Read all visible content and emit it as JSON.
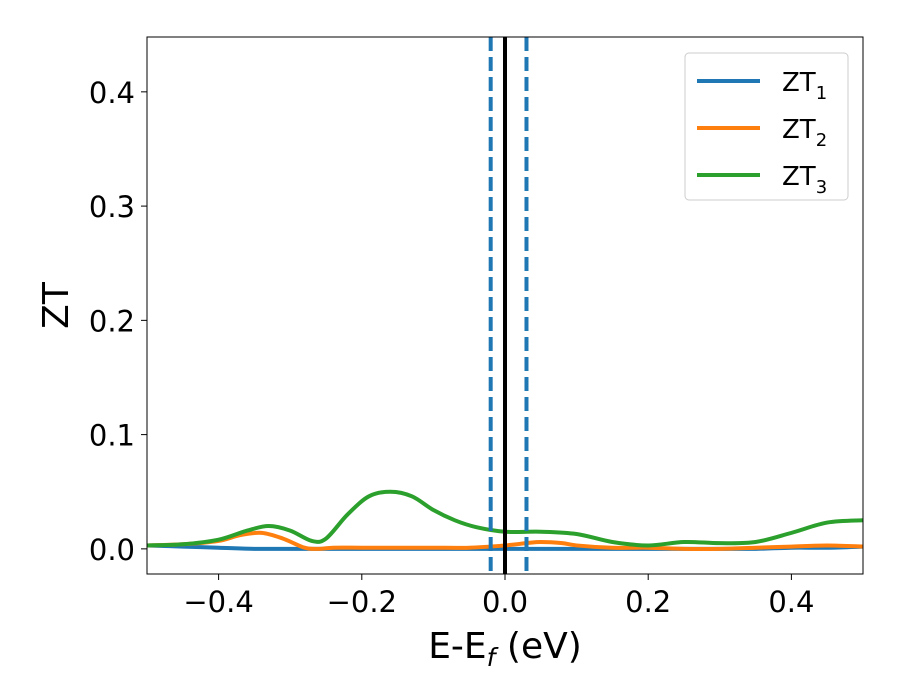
{
  "chart_data": {
    "type": "line",
    "title": "",
    "xlabel_main": "E-E",
    "xlabel_sub": "f",
    "xlabel_unit": " (eV)",
    "ylabel": "ZT",
    "xlim": [
      -0.5,
      0.5
    ],
    "ylim": [
      -0.022,
      0.448
    ],
    "xticks": [
      -0.4,
      -0.2,
      0.0,
      0.2,
      0.4
    ],
    "xtick_labels": [
      "−0.4",
      "−0.2",
      "0.0",
      "0.2",
      "0.4"
    ],
    "yticks": [
      0.0,
      0.1,
      0.2,
      0.3,
      0.4
    ],
    "ytick_labels": [
      "0.0",
      "0.1",
      "0.2",
      "0.3",
      "0.4"
    ],
    "grid": false,
    "legend_position": "top-right",
    "vertical_lines": [
      {
        "x": -0.02,
        "style": "dashed",
        "color": "#1f77b4"
      },
      {
        "x": 0.0,
        "style": "solid",
        "color": "#000000"
      },
      {
        "x": 0.03,
        "style": "dashed",
        "color": "#1f77b4"
      }
    ],
    "series": [
      {
        "name_main": "ZT",
        "name_sub": "1",
        "color": "#1f77b4",
        "x": [
          -0.5,
          -0.45,
          -0.4,
          -0.35,
          -0.3,
          -0.25,
          -0.2,
          -0.15,
          -0.1,
          -0.05,
          0.0,
          0.05,
          0.1,
          0.15,
          0.2,
          0.25,
          0.3,
          0.35,
          0.4,
          0.45,
          0.5
        ],
        "y": [
          0.003,
          0.002,
          0.001,
          0.0,
          0.0,
          0.0,
          0.0,
          0.0,
          0.0,
          0.0,
          0.0,
          0.0,
          0.0,
          0.0,
          0.0,
          0.0,
          0.0,
          0.0,
          0.001,
          0.001,
          0.002
        ]
      },
      {
        "name_main": "ZT",
        "name_sub": "2",
        "color": "#ff7f0e",
        "x": [
          -0.5,
          -0.45,
          -0.4,
          -0.37,
          -0.34,
          -0.31,
          -0.28,
          -0.26,
          -0.24,
          -0.2,
          -0.15,
          -0.1,
          -0.05,
          0.0,
          0.03,
          0.05,
          0.08,
          0.1,
          0.15,
          0.2,
          0.25,
          0.3,
          0.35,
          0.4,
          0.45,
          0.5
        ],
        "y": [
          0.003,
          0.004,
          0.007,
          0.012,
          0.014,
          0.009,
          0.001,
          0.0,
          0.001,
          0.001,
          0.001,
          0.001,
          0.001,
          0.003,
          0.005,
          0.006,
          0.005,
          0.003,
          0.001,
          0.001,
          0.0,
          0.0,
          0.001,
          0.002,
          0.003,
          0.002
        ]
      },
      {
        "name_main": "ZT",
        "name_sub": "3",
        "color": "#2ca02c",
        "x": [
          -0.5,
          -0.45,
          -0.4,
          -0.36,
          -0.33,
          -0.3,
          -0.27,
          -0.25,
          -0.22,
          -0.19,
          -0.16,
          -0.13,
          -0.1,
          -0.07,
          -0.04,
          0.0,
          0.05,
          0.1,
          0.15,
          0.2,
          0.25,
          0.3,
          0.35,
          0.4,
          0.45,
          0.5
        ],
        "y": [
          0.003,
          0.004,
          0.008,
          0.016,
          0.02,
          0.016,
          0.007,
          0.009,
          0.03,
          0.046,
          0.05,
          0.046,
          0.034,
          0.025,
          0.019,
          0.015,
          0.015,
          0.013,
          0.006,
          0.003,
          0.006,
          0.005,
          0.006,
          0.014,
          0.023,
          0.025
        ]
      }
    ]
  }
}
